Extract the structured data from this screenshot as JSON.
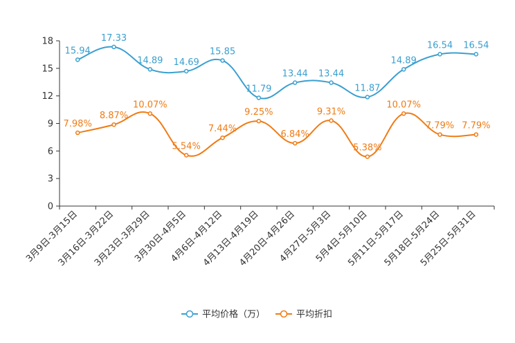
{
  "chart_data": {
    "type": "line",
    "title": "",
    "xlabel": "",
    "ylabel": "",
    "ylim": [
      0,
      18
    ],
    "yticks": [
      0,
      3,
      6,
      9,
      12,
      15,
      18
    ],
    "grid": false,
    "legend_position": "bottom-center",
    "categories": [
      "3月9日-3月15日",
      "3月16日-3月22日",
      "3月23日-3月29日",
      "3月30日-4月5日",
      "4月6日-4月12日",
      "4月13日-4月19日",
      "4月20日-4月26日",
      "4月27日-5月3日",
      "5月4日-5月10日",
      "5月11日-5月17日",
      "5月18日-5月24日",
      "5月25日-5月31日"
    ],
    "series": [
      {
        "name": "平均价格（万）",
        "color": "#3a9fd0",
        "values": [
          15.94,
          17.33,
          14.89,
          14.69,
          15.85,
          11.79,
          13.44,
          13.44,
          11.87,
          14.89,
          16.54,
          16.54
        ],
        "labels": [
          "15.94",
          "17.33",
          "14.89",
          "14.69",
          "15.85",
          "11.79",
          "13.44",
          "13.44",
          "11.87",
          "14.89",
          "16.54",
          "16.54"
        ]
      },
      {
        "name": "平均折扣",
        "color": "#f07b14",
        "values": [
          7.98,
          8.87,
          10.07,
          5.54,
          7.44,
          9.25,
          6.84,
          9.31,
          5.38,
          10.07,
          7.79,
          7.79
        ],
        "labels": [
          "7.98%",
          "8.87%",
          "10.07%",
          "5.54%",
          "7.44%",
          "9.25%",
          "6.84%",
          "9.31%",
          "5.38%",
          "10.07%",
          "7.79%",
          "7.79%"
        ]
      }
    ]
  }
}
